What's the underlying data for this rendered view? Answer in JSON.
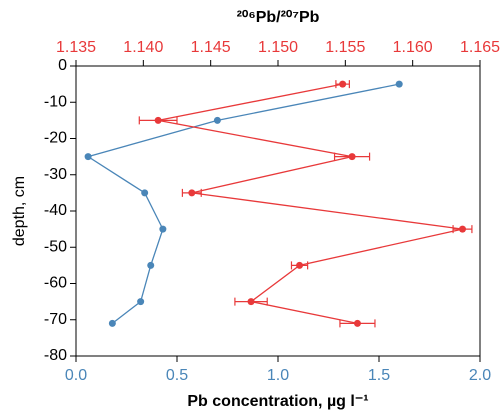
{
  "chart_data": {
    "type": "line",
    "xlabel": "Pb concentration, µg l⁻¹",
    "x2label": "²⁰⁶Pb/²⁰⁷Pb",
    "ylabel": "depth, cm",
    "xlim": [
      0,
      2
    ],
    "xticks": [
      {
        "value": 0,
        "label": "0.0"
      },
      0.5,
      {
        "value": 1,
        "label": "1.0"
      },
      1.5,
      {
        "value": 2,
        "label": "2.0"
      }
    ],
    "x2lim": [
      1.135,
      1.165
    ],
    "x2ticks": [
      1.135,
      {
        "value": 1.14,
        "label": "1.140"
      },
      1.145,
      {
        "value": 1.15,
        "label": "1.150"
      },
      1.155,
      {
        "value": 1.16,
        "label": "1.160"
      },
      1.165
    ],
    "ylim": [
      -80,
      0
    ],
    "yticks": [
      0,
      -10,
      -20,
      -30,
      -40,
      -50,
      -60,
      -70,
      -80
    ],
    "xcolor": "#4a86b8",
    "x2color": "#e8393a",
    "series": [
      {
        "color": "#4a86b8",
        "x": [
          1.6,
          0.7,
          0.06,
          0.34,
          0.43,
          0.37,
          0.32,
          0.18
        ],
        "y": [
          -5,
          -15,
          -25,
          -35,
          -45,
          -55,
          -65,
          -71
        ]
      },
      {
        "color": "#e8393a",
        "axis": "x2",
        "x": [
          1.1548,
          1.1411,
          1.1555,
          1.1436,
          1.1637,
          1.1516,
          1.148,
          1.1559
        ],
        "y": [
          -5,
          -15,
          -25,
          -35,
          -45,
          -55,
          -65,
          -71
        ],
        "errors": [
          0.0005,
          0.0014,
          0.0013,
          0.0007,
          0.0007,
          0.0006,
          0.0012,
          0.0013
        ]
      }
    ]
  }
}
